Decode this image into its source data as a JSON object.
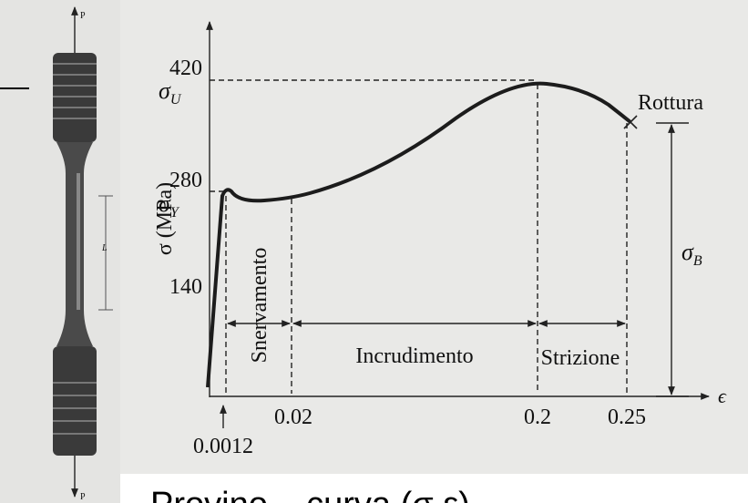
{
  "specimen": {
    "load_top": "P",
    "gauge_length": "L",
    "load_bottom": "P"
  },
  "axes": {
    "y_label": "σ (MPa)",
    "x_label": "ϵ",
    "y_ticks": [
      "420",
      "280",
      "140"
    ],
    "y_symbols": [
      {
        "symbol": "σ",
        "sub": "U"
      },
      {
        "symbol": "σ",
        "sub": "Y"
      }
    ],
    "x_ticks": [
      "0.0012",
      "0.02",
      "0.2",
      "0.25"
    ]
  },
  "regions": [
    "Snervamento",
    "Incrudimento",
    "Strizione"
  ],
  "annotations": {
    "rupture": "Rottura",
    "breaking_stress": {
      "symbol": "σ",
      "sub": "B"
    }
  },
  "caption": "Provino – curva (σ,ε)"
}
